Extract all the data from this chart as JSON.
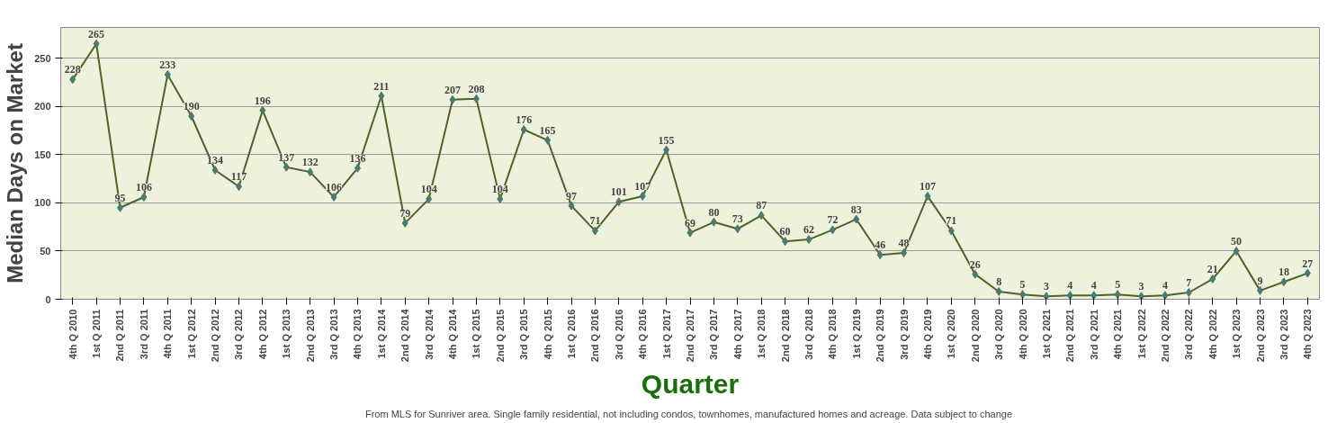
{
  "chart_data": {
    "type": "line",
    "xlabel": "Quarter",
    "ylabel": "Median Days on Market",
    "categories": [
      "4th Q 2010",
      "1st Q 2011",
      "2nd Q 2011",
      "3rd Q 2011",
      "4th Q 2011",
      "1st Q 2012",
      "2nd Q 2012",
      "3rd Q 2012",
      "4th Q 2012",
      "1st Q 2013",
      "2nd Q 2013",
      "3rd Q 2013",
      "4th Q 2013",
      "1st Q 2014",
      "2nd Q 2014",
      "3rd Q 2014",
      "4th Q 2014",
      "1st Q 2015",
      "2nd Q 2015",
      "3rd Q 2015",
      "4th Q 2015",
      "1st Q 2016",
      "2nd Q 2016",
      "3rd Q 2016",
      "4th Q 2016",
      "1st Q 2017",
      "2nd Q 2017",
      "3rd Q 2017",
      "4th Q 2017",
      "1st Q 2018",
      "2nd Q 2018",
      "3rd Q 2018",
      "4th Q 2018",
      "1st Q 2019",
      "2nd Q 2019",
      "3rd Q 2019",
      "4th Q 2019",
      "1st Q 2020",
      "2nd Q 2020",
      "3rd Q 2020",
      "4th Q 2020",
      "1st Q 2021",
      "2nd Q 2021",
      "3rd Q 2021",
      "4th Q 2021",
      "1st Q 2022",
      "2nd Q 2022",
      "3rd Q 2022",
      "4th Q 2022",
      "1st Q 2023",
      "2nd Q 2023",
      "3rd Q 2023",
      "4th Q 2023"
    ],
    "series": [
      {
        "color": "#4f6228",
        "values": [
          228,
          265,
          95,
          106,
          233,
          190,
          134,
          117,
          196,
          137,
          132,
          106,
          136,
          211,
          79,
          104,
          207,
          208,
          104,
          176,
          165,
          97,
          71,
          101,
          107,
          155,
          69,
          80,
          73,
          87,
          60,
          62,
          72,
          83,
          46,
          48,
          107,
          71,
          26,
          8,
          5,
          3,
          4,
          4,
          5,
          3,
          4,
          7,
          21,
          50,
          9,
          18,
          27
        ]
      }
    ],
    "ylim": [
      0,
      282
    ],
    "yticks": [
      0,
      50,
      100,
      150,
      200,
      250
    ],
    "grid": "y",
    "marker": "diamond",
    "line_style": "solid",
    "data_labels": true,
    "annotations": [
      "From MLS for Sunriver area. Single family residential, not including condos, townhomes, manufactured homes and acreage.  Data subject to change"
    ]
  }
}
